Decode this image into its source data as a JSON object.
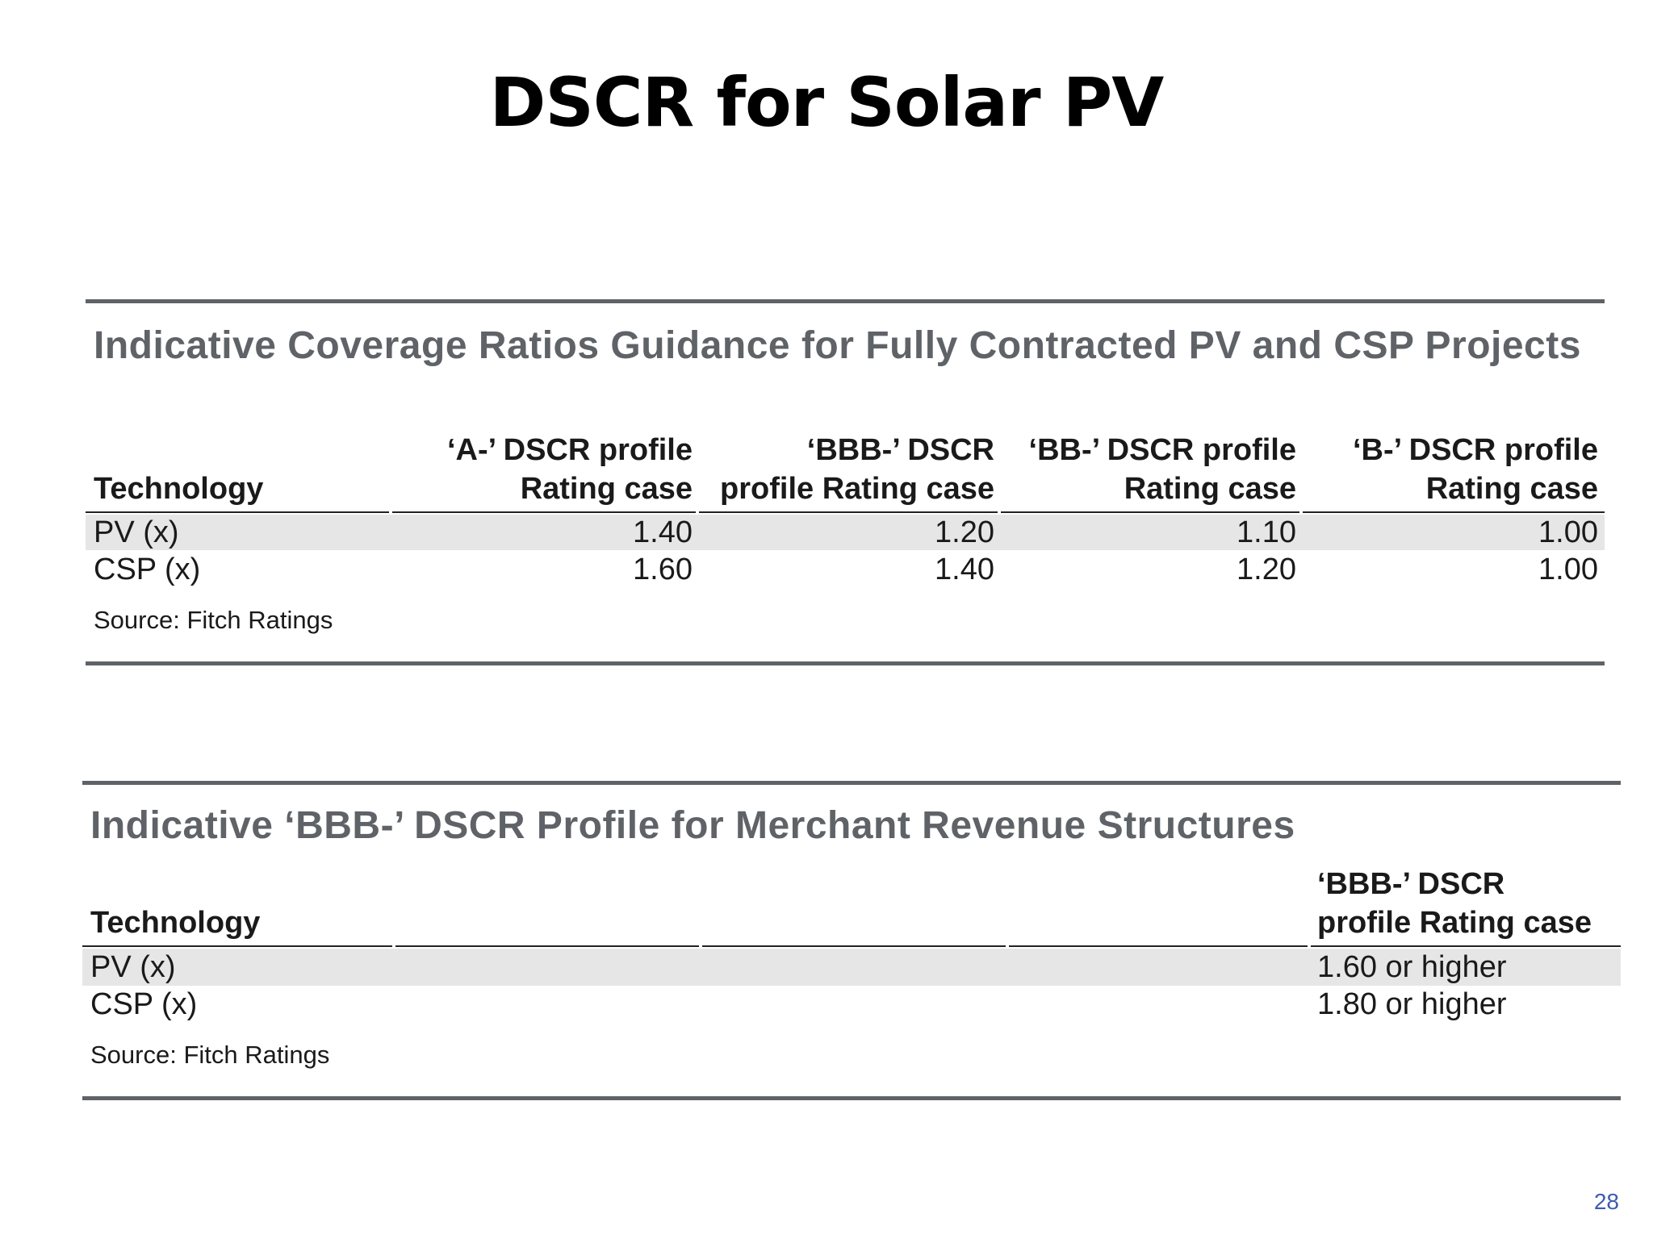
{
  "slide": {
    "title": "DSCR for Solar PV",
    "page_number": "28"
  },
  "table1": {
    "title": "Indicative Coverage Ratios Guidance for Fully Contracted PV and CSP Projects",
    "headers": [
      {
        "line1": "",
        "line2": "Technology"
      },
      {
        "line1": "‘A-’ DSCR profile",
        "line2": "Rating case"
      },
      {
        "line1": "‘BBB-’ DSCR",
        "line2": "profile Rating case"
      },
      {
        "line1": "‘BB-’ DSCR profile",
        "line2": "Rating case"
      },
      {
        "line1": "‘B-’ DSCR profile",
        "line2": "Rating case"
      }
    ],
    "rows": [
      {
        "technology": "PV (x)",
        "values": [
          "1.40",
          "1.20",
          "1.10",
          "1.00"
        ]
      },
      {
        "technology": "CSP (x)",
        "values": [
          "1.60",
          "1.40",
          "1.20",
          "1.00"
        ]
      }
    ],
    "source": "Source: Fitch Ratings"
  },
  "table2": {
    "title": "Indicative ‘BBB-’ DSCR Profile for Merchant Revenue Structures",
    "headers": [
      {
        "line1": "",
        "line2": "Technology"
      },
      {
        "line1": "‘BBB-’ DSCR",
        "line2": "profile Rating case"
      }
    ],
    "rows": [
      {
        "technology": "PV (x)",
        "value": "1.60 or higher"
      },
      {
        "technology": "CSP (x)",
        "value": "1.80 or higher"
      }
    ],
    "source": "Source: Fitch Ratings"
  },
  "colors": {
    "title_gray": "#5f6368",
    "band_gray": "#e6e6e6",
    "page_number_blue": "#3d5bb0"
  }
}
